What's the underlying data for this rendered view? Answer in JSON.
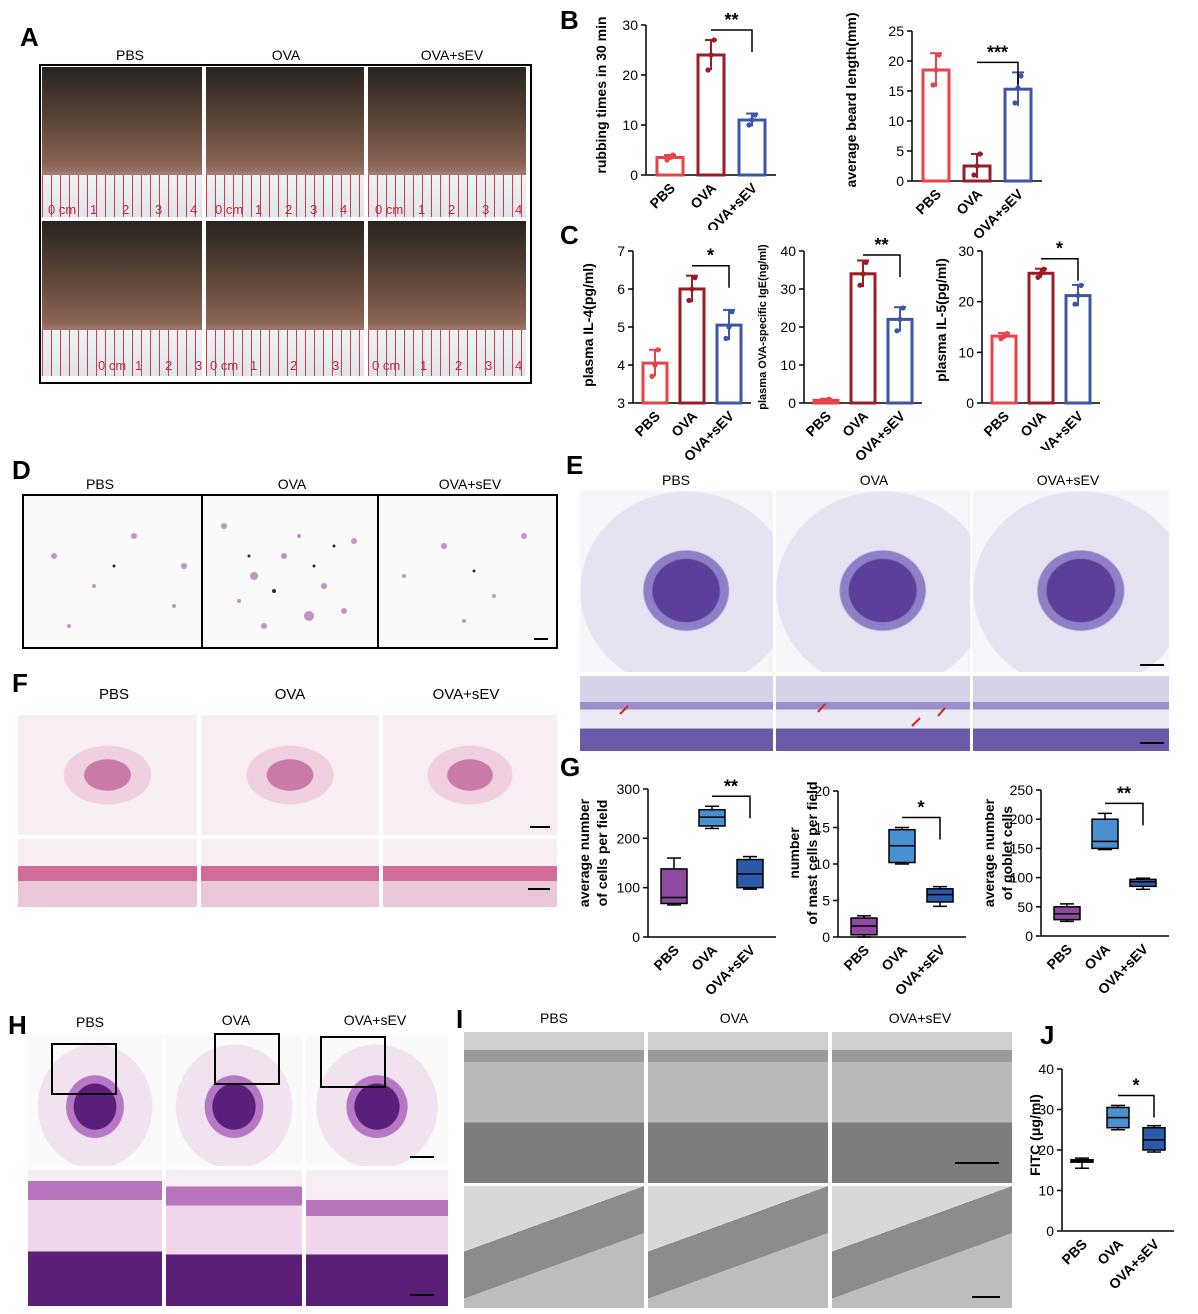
{
  "panels": {
    "A": {
      "label": "A",
      "groups": [
        "PBS",
        "OVA",
        "OVA+sEV"
      ]
    },
    "B": {
      "label": "B"
    },
    "C": {
      "label": "C"
    },
    "D": {
      "label": "D",
      "groups": [
        "PBS",
        "OVA",
        "OVA+sEV"
      ]
    },
    "E": {
      "label": "E",
      "groups": [
        "PBS",
        "OVA",
        "OVA+sEV"
      ]
    },
    "F": {
      "label": "F",
      "groups": [
        "PBS",
        "OVA",
        "OVA+sEV"
      ]
    },
    "G": {
      "label": "G"
    },
    "H": {
      "label": "H",
      "groups": [
        "PBS",
        "OVA",
        "OVA+sEV"
      ]
    },
    "I": {
      "label": "I",
      "groups": [
        "PBS",
        "OVA",
        "OVA+sEV"
      ]
    },
    "J": {
      "label": "J"
    }
  },
  "rulers": {
    "row1": [
      [
        "0 cm",
        "1",
        "2",
        "3",
        "4"
      ],
      [
        "0 cm",
        "1",
        "2",
        "3",
        "4"
      ],
      [
        "0 cm",
        "1",
        "2",
        "3",
        "4"
      ]
    ],
    "row2": [
      [
        "0 cm",
        "1",
        "2",
        "3"
      ],
      [
        "0 cm",
        "1",
        "2",
        "3"
      ],
      [
        "0 cm",
        "1",
        "2",
        "3",
        "4"
      ]
    ]
  },
  "colors": {
    "pbs_bar": "#e8434b",
    "ova_bar": "#9b1c24",
    "sev_bar": "#3d56a8",
    "pbs_box": "#8e4aa0",
    "ova_box": "#4a8fd0",
    "sev_box": "#2d5aa8"
  },
  "chart_data": [
    {
      "id": "B1",
      "type": "bar",
      "categories": [
        "PBS",
        "OVA",
        "OVA+sEV"
      ],
      "values": [
        3.5,
        24,
        11
      ],
      "errors": [
        0.5,
        3,
        1.3
      ],
      "ylabel": "rubbing times in 30 min",
      "ylim": [
        0,
        30
      ],
      "yticks": [
        0,
        10,
        20,
        30
      ],
      "sig": {
        "from": 1,
        "to": 2,
        "text": "**"
      },
      "points": [
        [
          3,
          3.5,
          4
        ],
        [
          21,
          24,
          27
        ],
        [
          10,
          11,
          12
        ]
      ]
    },
    {
      "id": "B2",
      "type": "bar",
      "categories": [
        "PBS",
        "OVA",
        "OVA+sEV"
      ],
      "values": [
        18.5,
        2.5,
        15.3
      ],
      "errors": [
        2.8,
        2,
        2.8
      ],
      "ylabel": "average beard length(mm)",
      "ylim": [
        0,
        25
      ],
      "yticks": [
        0,
        5,
        10,
        15,
        20,
        25
      ],
      "sig": {
        "from": 1,
        "to": 2,
        "text": "***"
      },
      "points": [
        [
          16,
          18.5,
          21
        ],
        [
          1,
          2.5,
          4.5
        ],
        [
          13,
          15.5,
          17.5
        ]
      ]
    },
    {
      "id": "C1",
      "type": "bar",
      "categories": [
        "PBS",
        "OVA",
        "OVA+sEV"
      ],
      "values": [
        4.05,
        6.0,
        5.05
      ],
      "errors": [
        0.35,
        0.35,
        0.4
      ],
      "ylabel": "plasma IL-4(pg/ml)",
      "ylim": [
        3,
        7
      ],
      "yticks": [
        3,
        4,
        5,
        6,
        7
      ],
      "sig": {
        "from": 1,
        "to": 2,
        "text": "*"
      },
      "points": [
        [
          3.7,
          4.0,
          4.4
        ],
        [
          5.7,
          6.0,
          6.3
        ],
        [
          4.7,
          5.0,
          5.4
        ]
      ]
    },
    {
      "id": "C2",
      "type": "bar",
      "categories": [
        "PBS",
        "OVA",
        "OVA+sEV"
      ],
      "values": [
        0.7,
        34,
        22
      ],
      "errors": [
        0.4,
        3.5,
        3.2
      ],
      "ylabel": "plasma OVA-specific IgE(ng/ml)",
      "ylim": [
        0,
        40
      ],
      "yticks": [
        0,
        10,
        20,
        30,
        40
      ],
      "sig": {
        "from": 1,
        "to": 2,
        "text": "**"
      },
      "points": [
        [
          0.3,
          0.7,
          1.0
        ],
        [
          31,
          34,
          37
        ],
        [
          19,
          22,
          25
        ]
      ]
    },
    {
      "id": "C3",
      "type": "bar",
      "categories": [
        "PBS",
        "OVA",
        "OVA+sEV"
      ],
      "values": [
        13.2,
        25.6,
        21.2
      ],
      "errors": [
        0.6,
        0.9,
        2.1
      ],
      "ylabel": "plasma IL-5(pg/ml)",
      "ylim": [
        0,
        30
      ],
      "yticks": [
        0,
        10,
        20,
        30
      ],
      "sig": {
        "from": 1,
        "to": 2,
        "text": "*"
      },
      "points": [
        [
          12.7,
          13.2,
          13.7
        ],
        [
          24.8,
          25.6,
          26.4
        ],
        [
          19.5,
          21.2,
          23.2
        ]
      ]
    },
    {
      "id": "G1",
      "type": "box",
      "categories": [
        "PBS",
        "OVA",
        "OVA+sEV"
      ],
      "boxes": [
        [
          65,
          68,
          80,
          138,
          160
        ],
        [
          220,
          225,
          243,
          258,
          265
        ],
        [
          97,
          100,
          128,
          157,
          163
        ]
      ],
      "ylabel": [
        "average number",
        "of cells per field"
      ],
      "ylim": [
        0,
        300
      ],
      "yticks": [
        0,
        100,
        200,
        300
      ],
      "sig": {
        "from": 1,
        "to": 2,
        "text": "**"
      }
    },
    {
      "id": "G2",
      "type": "box",
      "categories": [
        "PBS",
        "OVA",
        "OVA+sEV"
      ],
      "boxes": [
        [
          0,
          0.3,
          1.5,
          2.6,
          2.9
        ],
        [
          10,
          10.2,
          12.5,
          14.7,
          15
        ],
        [
          4.2,
          4.8,
          5.8,
          6.6,
          6.9
        ]
      ],
      "ylabel": [
        "number",
        "of mast cells per field"
      ],
      "ylim": [
        0,
        20
      ],
      "yticks": [
        0,
        5,
        10,
        15,
        20
      ],
      "sig": {
        "from": 1,
        "to": 2,
        "text": "*"
      }
    },
    {
      "id": "G3",
      "type": "box",
      "categories": [
        "PBS",
        "OVA",
        "OVA+sEV"
      ],
      "boxes": [
        [
          25,
          28,
          38,
          50,
          55
        ],
        [
          148,
          150,
          162,
          200,
          210
        ],
        [
          80,
          85,
          93,
          97,
          99
        ]
      ],
      "ylabel": [
        "average number",
        "of goblet cells"
      ],
      "ylim": [
        0,
        250
      ],
      "yticks": [
        0,
        50,
        100,
        150,
        200,
        250
      ],
      "sig": {
        "from": 1,
        "to": 2,
        "text": "**"
      }
    },
    {
      "id": "J",
      "type": "box",
      "categories": [
        "PBS",
        "OVA",
        "OVA+sEV"
      ],
      "boxes": [
        [
          15.5,
          17,
          17.3,
          17.6,
          18
        ],
        [
          25,
          25.5,
          28,
          30.5,
          31
        ],
        [
          19.5,
          20,
          22.5,
          25.5,
          26
        ]
      ],
      "ylabel": [
        "FITC (μg/ml)"
      ],
      "ylim": [
        0,
        40
      ],
      "yticks": [
        0,
        10,
        20,
        30,
        40
      ],
      "sig": {
        "from": 1,
        "to": 2,
        "text": "*"
      }
    }
  ]
}
